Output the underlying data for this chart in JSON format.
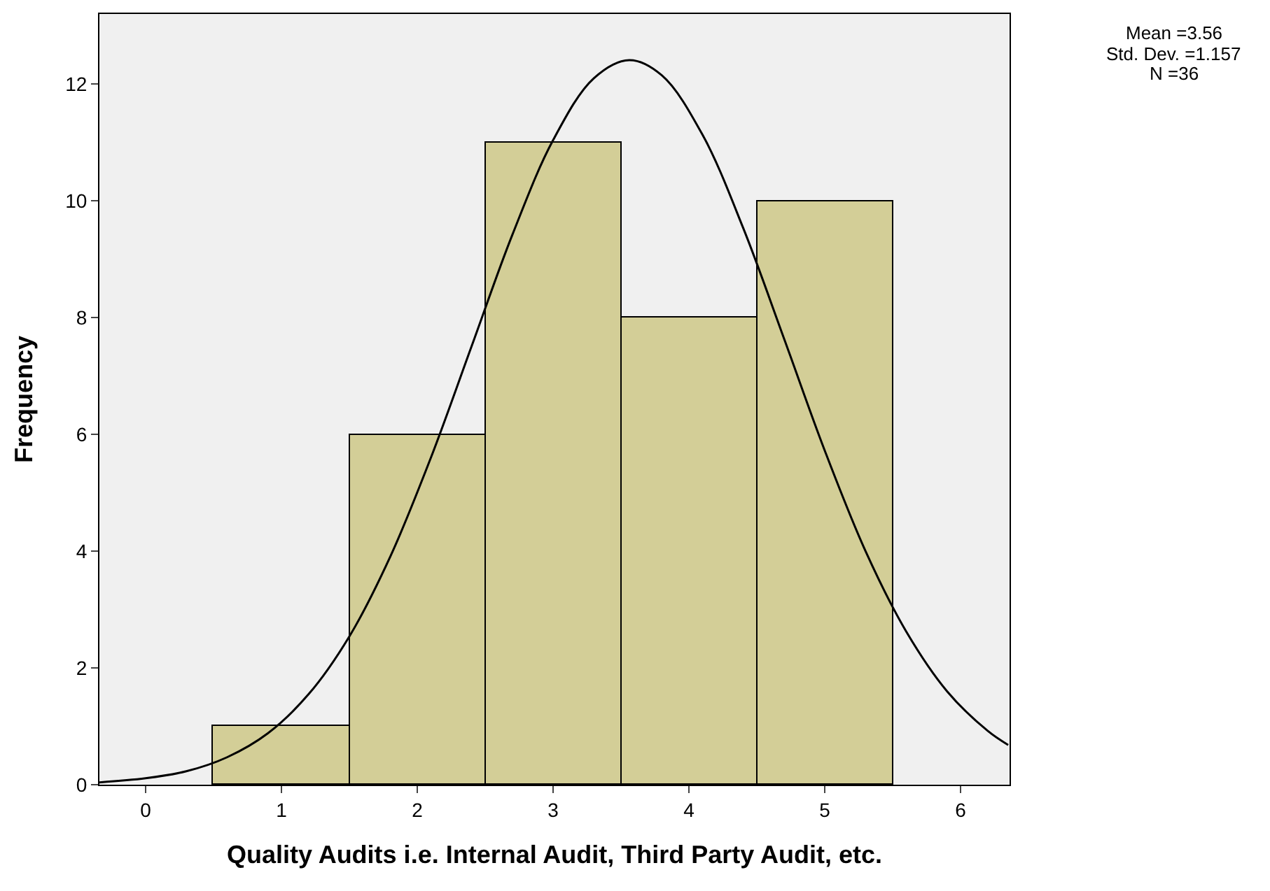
{
  "chart_data": {
    "type": "histogram",
    "xlabel": "Quality Audits i.e. Internal Audit, Third Party Audit, etc.",
    "ylabel": "Frequency",
    "bins": [
      0.5,
      1.5,
      2.5,
      3.5,
      4.5,
      5.5
    ],
    "values": [
      1,
      6,
      11,
      8,
      10
    ],
    "color": "#d3ce97",
    "series": [
      {
        "type": "line",
        "color": "#000000",
        "x": [
          -0.34,
          0,
          0.3,
          0.6,
          0.9,
          1.2,
          1.5,
          1.8,
          2.1,
          2.4,
          2.7,
          3.0,
          3.3,
          3.56,
          3.8,
          4.1,
          4.4,
          4.7,
          5.0,
          5.3,
          5.6,
          5.9,
          6.2,
          6.35
        ],
        "values": [
          0.04,
          0.11,
          0.23,
          0.47,
          0.88,
          1.55,
          2.54,
          3.9,
          5.6,
          7.51,
          9.42,
          11.04,
          12.1,
          12.41,
          12.15,
          11.13,
          9.53,
          7.64,
          5.72,
          4.0,
          2.62,
          1.6,
          0.92,
          0.68
        ]
      }
    ],
    "xlim": [
      -0.34,
      6.36
    ],
    "ylim": [
      0,
      13.2
    ],
    "xticks": [
      0,
      1,
      2,
      3,
      4,
      5,
      6
    ],
    "yticks": [
      0,
      2,
      4,
      6,
      8,
      10,
      12
    ],
    "grid": false,
    "marker": "none",
    "annotations": [
      "Mean =3.56",
      "Std. Dev. =1.157",
      "N =36"
    ]
  }
}
